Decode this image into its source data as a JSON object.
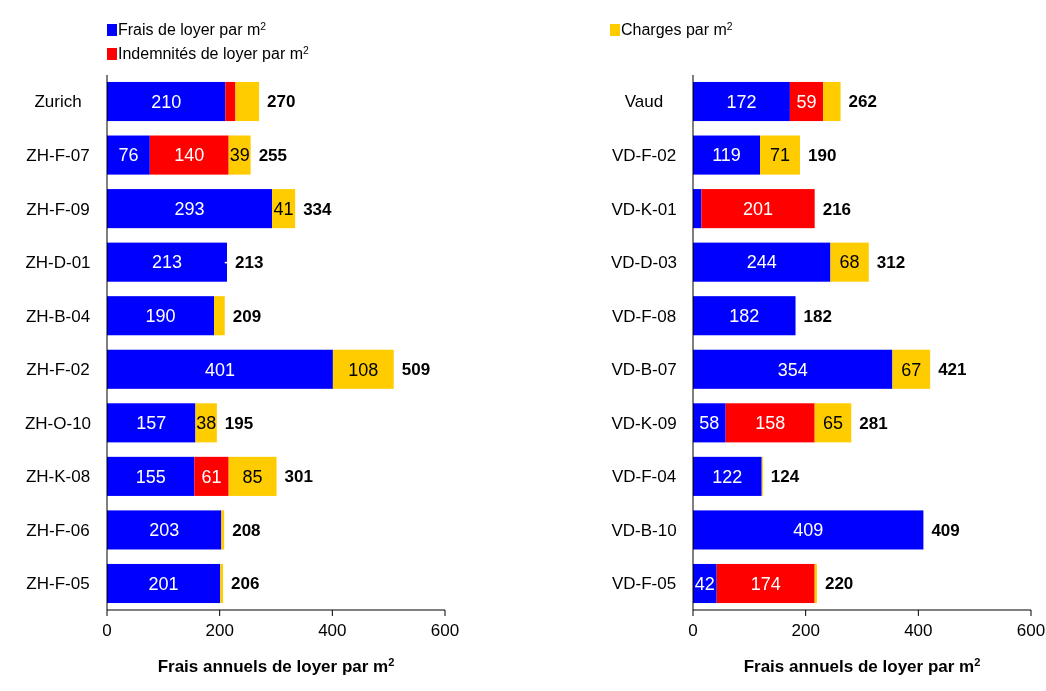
{
  "chart_data": [
    {
      "type": "bar",
      "orientation": "horizontal",
      "stacked": true,
      "legend": "top left",
      "xlabel": "Frais annuels de loyer par m$^{2}$",
      "categories": [
        "Zurich",
        "ZH-F-07",
        "ZH-F-09",
        "ZH-D-01",
        "ZH-B-04",
        "ZH-F-02",
        "ZH-O-10",
        "ZH-K-08",
        "ZH-F-06",
        "ZH-F-05"
      ],
      "series": [
        {
          "name": "Frais de loyer par m$^{2}$",
          "color": "#0000ff",
          "values": [
            210,
            76,
            293,
            213,
            190,
            401,
            157,
            155,
            203,
            201
          ],
          "value_labels": [
            "210",
            "76",
            "293",
            "213",
            "190",
            "401",
            "157",
            "155",
            "203",
            "201"
          ]
        },
        {
          "name": "Indemnités de loyer par m$^{2}$",
          "color": "#ff0000",
          "values": [
            18,
            140,
            0,
            0,
            0,
            0,
            0,
            61,
            0,
            0
          ],
          "value_labels": [
            null,
            "140",
            null,
            "-",
            null,
            null,
            null,
            "61",
            null,
            null
          ]
        },
        {
          "color": "#ffcc00",
          "values": [
            42,
            39,
            41,
            0,
            19,
            108,
            38,
            85,
            5,
            5
          ],
          "value_labels": [
            null,
            "39",
            "41",
            null,
            null,
            "108",
            "38",
            "85",
            null,
            null
          ]
        }
      ],
      "totals": [
        "270",
        "255",
        "334",
        "213",
        "209",
        "509",
        "195",
        "301",
        "208",
        "206"
      ],
      "xlim": [
        0,
        600
      ],
      "xticks": [
        0,
        200,
        400,
        600
      ]
    },
    {
      "type": "bar",
      "orientation": "horizontal",
      "stacked": true,
      "legend": "top left",
      "xlabel": "Frais annuels de loyer par m$^{2}$",
      "categories": [
        "Vaud",
        "VD-F-02",
        "VD-K-01",
        "VD-D-03",
        "VD-F-08",
        "VD-B-07",
        "VD-K-09",
        "VD-F-04",
        "VD-B-10",
        "VD-F-05"
      ],
      "series": [
        {
          "color": "#0000ff",
          "values": [
            172,
            119,
            15,
            244,
            182,
            354,
            58,
            122,
            409,
            42
          ],
          "value_labels": [
            "172",
            "119",
            null,
            "244",
            "182",
            "354",
            "58",
            "122",
            "409",
            "42"
          ]
        },
        {
          "color": "#ff0000",
          "values": [
            59,
            0,
            201,
            0,
            0,
            0,
            158,
            0,
            0,
            174
          ],
          "value_labels": [
            "59",
            null,
            "201",
            null,
            null,
            null,
            "158",
            null,
            null,
            "174"
          ]
        },
        {
          "name": "Charges par m$^{2}$",
          "color": "#ffcc00",
          "values": [
            31,
            71,
            0,
            68,
            0,
            67,
            65,
            2,
            0,
            4
          ],
          "value_labels": [
            null,
            "71",
            null,
            "68",
            null,
            "67",
            "65",
            null,
            null,
            null
          ]
        }
      ],
      "totals": [
        "262",
        "190",
        "216",
        "312",
        "182",
        "421",
        "281",
        "124",
        "409",
        "220"
      ],
      "xlim": [
        0,
        600
      ],
      "xticks": [
        0,
        200,
        400,
        600
      ]
    }
  ]
}
